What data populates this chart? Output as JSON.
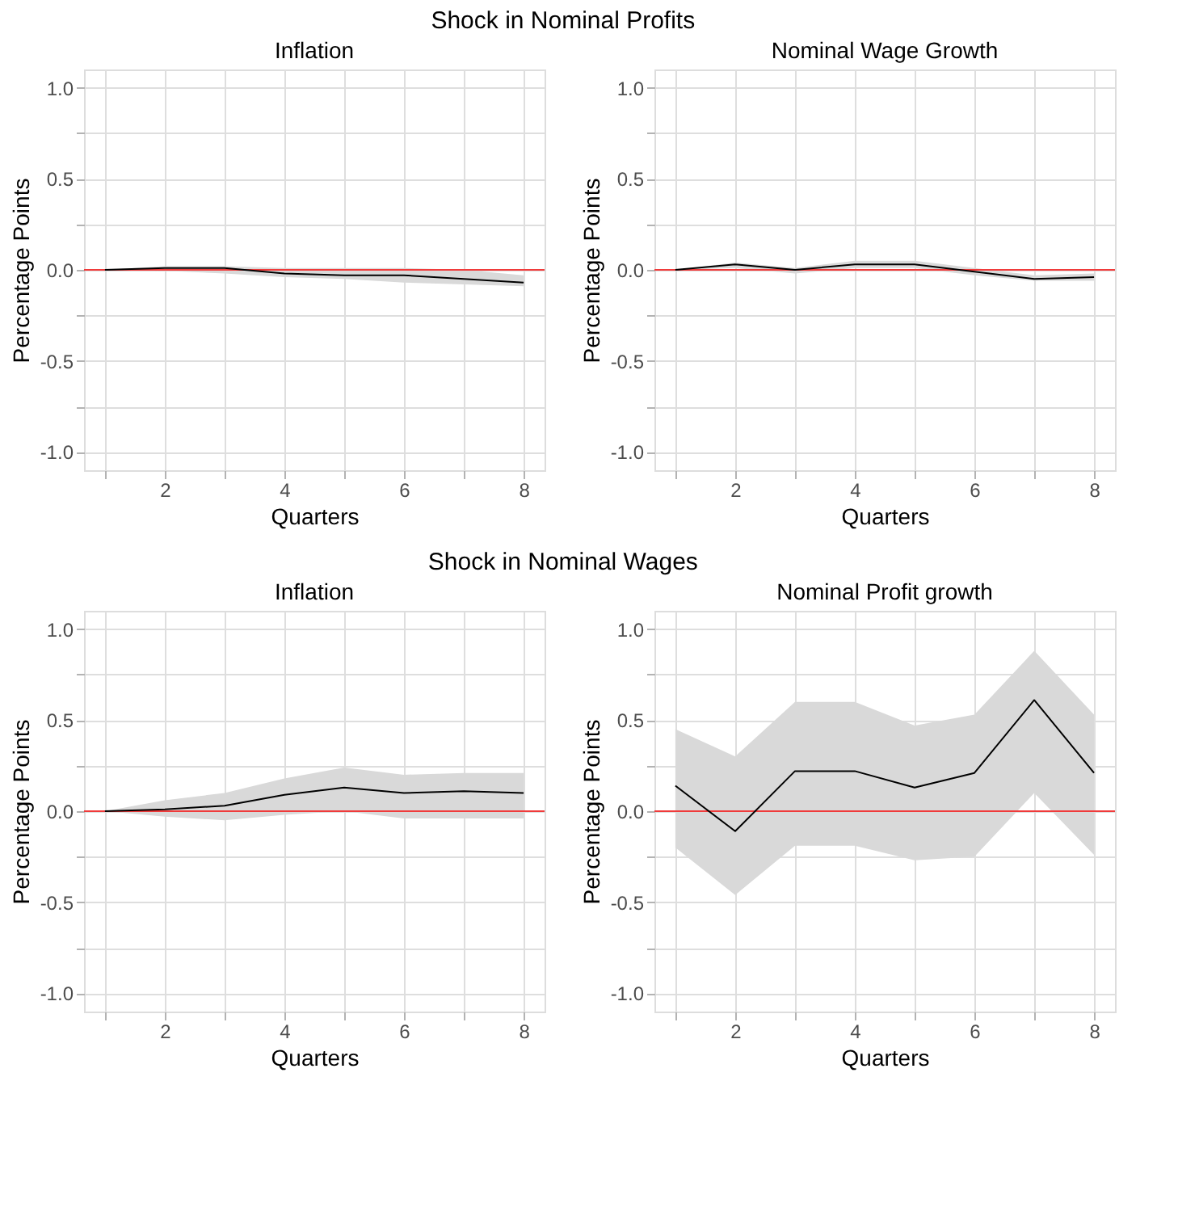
{
  "chart_data": [
    {
      "type": "line",
      "title": "Inflation",
      "annotations": [
        "Shock in Nominal Profits"
      ],
      "xlabel": "Quarters",
      "ylabel": "Percentage Points",
      "x": [
        1,
        2,
        3,
        4,
        5,
        6,
        7,
        8
      ],
      "series": [
        {
          "color": "#000000",
          "values": [
            0,
            0.01,
            0.01,
            -0.02,
            -0.03,
            -0.03,
            -0.05,
            -0.07
          ],
          "lower": [
            0,
            -0.005,
            -0.02,
            -0.04,
            -0.05,
            -0.07,
            -0.08,
            -0.09
          ],
          "upper": [
            0,
            0.02,
            0.02,
            0.01,
            0.01,
            0.01,
            0.0,
            -0.03
          ]
        }
      ],
      "ref_lines": [
        {
          "axis": "y",
          "value": 0,
          "color": "#f03b3b"
        }
      ],
      "xlim": [
        0.65,
        8.35
      ],
      "ylim": [
        -1.1,
        1.1
      ],
      "xticks": [
        {
          "value": 1,
          "label": null
        },
        2,
        {
          "value": 3,
          "label": null
        },
        4,
        {
          "value": 5,
          "label": null
        },
        6,
        {
          "value": 7,
          "label": null
        },
        8
      ],
      "yticks": [
        {
          "value": -1,
          "label": "-1.0"
        },
        {
          "value": -0.75,
          "label": null
        },
        {
          "value": -0.5,
          "label": "-0.5"
        },
        {
          "value": -0.25,
          "label": null
        },
        {
          "value": 0,
          "label": "0.0"
        },
        {
          "value": 0.25,
          "label": null
        },
        {
          "value": 0.5,
          "label": "0.5"
        },
        {
          "value": 0.75,
          "label": null
        },
        {
          "value": 1,
          "label": "1.0"
        }
      ],
      "grid": true
    },
    {
      "type": "line",
      "title": "Nominal Wage Growth",
      "xlabel": "Quarters",
      "ylabel": "Percentage Points",
      "x": [
        1,
        2,
        3,
        4,
        5,
        6,
        7,
        8
      ],
      "series": [
        {
          "color": "#000000",
          "values": [
            0,
            0.03,
            0.0,
            0.03,
            0.03,
            -0.01,
            -0.05,
            -0.04
          ],
          "lower": [
            0,
            0.01,
            -0.02,
            0.01,
            0.01,
            -0.03,
            -0.06,
            -0.06
          ],
          "upper": [
            0,
            0.04,
            0.01,
            0.05,
            0.05,
            0.01,
            -0.03,
            -0.02
          ]
        }
      ],
      "ref_lines": [
        {
          "axis": "y",
          "value": 0,
          "color": "#f03b3b"
        }
      ],
      "xlim": [
        0.65,
        8.35
      ],
      "ylim": [
        -1.1,
        1.1
      ],
      "xticks": [
        {
          "value": 1,
          "label": null
        },
        2,
        {
          "value": 3,
          "label": null
        },
        4,
        {
          "value": 5,
          "label": null
        },
        6,
        {
          "value": 7,
          "label": null
        },
        8
      ],
      "yticks": [
        {
          "value": -1,
          "label": "-1.0"
        },
        {
          "value": -0.75,
          "label": null
        },
        {
          "value": -0.5,
          "label": "-0.5"
        },
        {
          "value": -0.25,
          "label": null
        },
        {
          "value": 0,
          "label": "0.0"
        },
        {
          "value": 0.25,
          "label": null
        },
        {
          "value": 0.5,
          "label": "0.5"
        },
        {
          "value": 0.75,
          "label": null
        },
        {
          "value": 1,
          "label": "1.0"
        }
      ],
      "grid": true
    },
    {
      "type": "line",
      "title": "Inflation",
      "annotations": [
        "Shock in Nominal Wages"
      ],
      "xlabel": "Quarters",
      "ylabel": "Percentage Points",
      "x": [
        1,
        2,
        3,
        4,
        5,
        6,
        7,
        8
      ],
      "series": [
        {
          "color": "#000000",
          "values": [
            0,
            0.01,
            0.03,
            0.09,
            0.13,
            0.1,
            0.11,
            0.1
          ],
          "lower": [
            0,
            -0.03,
            -0.05,
            -0.02,
            0.0,
            -0.04,
            -0.04,
            -0.04
          ],
          "upper": [
            0,
            0.06,
            0.1,
            0.18,
            0.24,
            0.2,
            0.21,
            0.21
          ]
        }
      ],
      "ref_lines": [
        {
          "axis": "y",
          "value": 0,
          "color": "#f03b3b"
        }
      ],
      "xlim": [
        0.65,
        8.35
      ],
      "ylim": [
        -1.1,
        1.1
      ],
      "xticks": [
        {
          "value": 1,
          "label": null
        },
        2,
        {
          "value": 3,
          "label": null
        },
        4,
        {
          "value": 5,
          "label": null
        },
        6,
        {
          "value": 7,
          "label": null
        },
        8
      ],
      "yticks": [
        {
          "value": -1,
          "label": "-1.0"
        },
        {
          "value": -0.75,
          "label": null
        },
        {
          "value": -0.5,
          "label": "-0.5"
        },
        {
          "value": -0.25,
          "label": null
        },
        {
          "value": 0,
          "label": "0.0"
        },
        {
          "value": 0.25,
          "label": null
        },
        {
          "value": 0.5,
          "label": "0.5"
        },
        {
          "value": 0.75,
          "label": null
        },
        {
          "value": 1,
          "label": "1.0"
        }
      ],
      "grid": true
    },
    {
      "type": "line",
      "title": "Nominal Profit growth",
      "xlabel": "Quarters",
      "ylabel": "Percentage Points",
      "x": [
        1,
        2,
        3,
        4,
        5,
        6,
        7,
        8
      ],
      "series": [
        {
          "color": "#000000",
          "values": [
            0.14,
            -0.11,
            0.22,
            0.22,
            0.13,
            0.21,
            0.61,
            0.21
          ],
          "lower": [
            -0.2,
            -0.46,
            -0.19,
            -0.19,
            -0.27,
            -0.25,
            0.1,
            -0.24
          ],
          "upper": [
            0.45,
            0.3,
            0.6,
            0.6,
            0.47,
            0.53,
            0.88,
            0.53
          ]
        }
      ],
      "ref_lines": [
        {
          "axis": "y",
          "value": 0,
          "color": "#f03b3b"
        }
      ],
      "xlim": [
        0.65,
        8.35
      ],
      "ylim": [
        -1.1,
        1.1
      ],
      "xticks": [
        {
          "value": 1,
          "label": null
        },
        2,
        {
          "value": 3,
          "label": null
        },
        4,
        {
          "value": 5,
          "label": null
        },
        6,
        {
          "value": 7,
          "label": null
        },
        8
      ],
      "yticks": [
        {
          "value": -1,
          "label": "-1.0"
        },
        {
          "value": -0.75,
          "label": null
        },
        {
          "value": -0.5,
          "label": "-0.5"
        },
        {
          "value": -0.25,
          "label": null
        },
        {
          "value": 0,
          "label": "0.0"
        },
        {
          "value": 0.25,
          "label": null
        },
        {
          "value": 0.5,
          "label": "0.5"
        },
        {
          "value": 0.75,
          "label": null
        },
        {
          "value": 1,
          "label": "1.0"
        }
      ],
      "grid": true
    }
  ]
}
